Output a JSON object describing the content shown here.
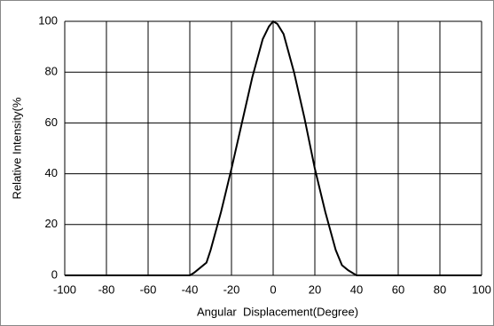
{
  "chart_data": {
    "type": "line",
    "x_label": "Angular  Displacement(Degree)",
    "y_label": "Relative Intensity(%",
    "x": [
      -100,
      -80,
      -60,
      -40,
      -38,
      -35,
      -32,
      -30,
      -25,
      -20,
      -15,
      -10,
      -5,
      -2,
      0,
      2,
      5,
      10,
      15,
      20,
      25,
      30,
      33,
      36,
      40,
      60,
      80,
      100
    ],
    "series": [
      {
        "color": "#000000",
        "values": [
          0,
          0,
          0,
          0,
          1,
          3,
          5,
          10,
          25,
          42,
          60,
          78,
          93,
          98,
          100,
          99,
          95,
          80,
          62,
          42,
          25,
          10,
          4,
          2,
          0,
          0,
          0,
          0
        ]
      }
    ],
    "xlim": [
      -100,
      100
    ],
    "xticks": [
      -100,
      -80,
      -60,
      -40,
      -20,
      0,
      20,
      40,
      60,
      80,
      100
    ],
    "ylim": [
      0,
      100
    ],
    "yticks": [
      0,
      20,
      40,
      60,
      80,
      100
    ],
    "grid": true
  }
}
